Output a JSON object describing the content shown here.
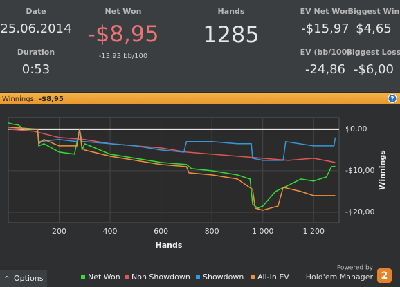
{
  "header": {
    "date_label": "Date",
    "date": "25.06.2014",
    "duration_label": "Duration",
    "duration": "0:53",
    "net_won_label": "Net Won",
    "net_won": "-$8,95",
    "net_won_bb": "-13,93 bb/100",
    "hands_label": "Hands",
    "hands": "1285",
    "ev_net_won_label": "EV Net Won",
    "ev_net_won": "-$15,97",
    "biggest_win_label": "Biggest Win",
    "biggest_win": "$4,65",
    "ev_bb_label": "EV (bb/100)",
    "ev_bb": "-24,86",
    "biggest_loss_label": "Biggest Loss",
    "biggest_loss": "-$6,00"
  },
  "bar": {
    "label": "Winnings:",
    "value": "-$8,95",
    "help": "?"
  },
  "chart_data": {
    "type": "line",
    "x_label": "Hands",
    "y_label": "Winnings",
    "xlim": [
      0,
      1300
    ],
    "ylim": [
      -22.5,
      2.8
    ],
    "xticks": [
      200,
      400,
      600,
      800,
      {
        "value": 1000,
        "label": "1 000"
      },
      {
        "value": 1200,
        "label": "1 200"
      }
    ],
    "yticks": [
      {
        "value": 0,
        "label": "$0,00"
      },
      {
        "value": -10,
        "label": "-$10,00"
      },
      {
        "value": -20,
        "label": "-$20,00"
      }
    ],
    "grid": true,
    "legend": "bottom",
    "series": [
      {
        "name": "Net Won",
        "color": "#33dd33",
        "x": [
          0,
          20,
          40,
          60,
          115,
          120,
          140,
          200,
          260,
          270,
          280,
          290,
          300,
          400,
          500,
          600,
          700,
          720,
          800,
          900,
          950,
          960,
          980,
          1000,
          1050,
          1100,
          1150,
          1200,
          1250,
          1270,
          1285
        ],
        "values": [
          1.5,
          1.2,
          1,
          0,
          0,
          -4,
          -3.5,
          -5.5,
          -6,
          -3,
          0,
          -5,
          -3.5,
          -6,
          -7,
          -8,
          -8.5,
          -9.5,
          -10,
          -11,
          -12,
          -18,
          -19,
          -18.5,
          -15,
          -13.5,
          -12,
          -12.5,
          -11.5,
          -9,
          -8.95
        ]
      },
      {
        "name": "Non Showdown",
        "color": "#e05555",
        "x": [
          0,
          100,
          200,
          300,
          400,
          500,
          600,
          700,
          800,
          900,
          1000,
          1100,
          1200,
          1285
        ],
        "values": [
          0,
          -0.5,
          -2,
          -2.5,
          -3.5,
          -4,
          -4.5,
          -5.5,
          -6,
          -6.5,
          -7,
          -7.5,
          -7,
          -8
        ]
      },
      {
        "name": "Showdown",
        "color": "#3399dd",
        "x": [
          0,
          115,
          120,
          200,
          270,
          280,
          290,
          300,
          400,
          500,
          600,
          690,
          700,
          800,
          900,
          955,
          960,
          1000,
          1080,
          1090,
          1200,
          1280,
          1285
        ],
        "values": [
          0.5,
          0,
          -3,
          -2.5,
          -3,
          0,
          -3,
          -3,
          -3.5,
          -4,
          -5,
          -5.5,
          -3,
          -3,
          -3.5,
          -3.5,
          -7,
          -7.5,
          -7.5,
          -3,
          -4,
          -4,
          -2
        ]
      },
      {
        "name": "All-In EV",
        "color": "#f0903a",
        "x": [
          0,
          115,
          120,
          140,
          200,
          270,
          280,
          290,
          300,
          400,
          500,
          600,
          700,
          710,
          800,
          900,
          960,
          970,
          1000,
          1060,
          1080,
          1150,
          1200,
          1285
        ],
        "values": [
          0.5,
          0,
          -3.5,
          -2.5,
          -4,
          -4,
          0,
          -4.5,
          -5,
          -6.5,
          -7.5,
          -8.5,
          -9,
          -10.5,
          -11,
          -12,
          -14.5,
          -19,
          -19.5,
          -18.5,
          -14,
          -15,
          -16,
          -16
        ]
      }
    ]
  },
  "footer": {
    "options": "Options",
    "powered_by": "Powered by",
    "brand": "Hold'em Manager",
    "brand_badge": "2"
  }
}
